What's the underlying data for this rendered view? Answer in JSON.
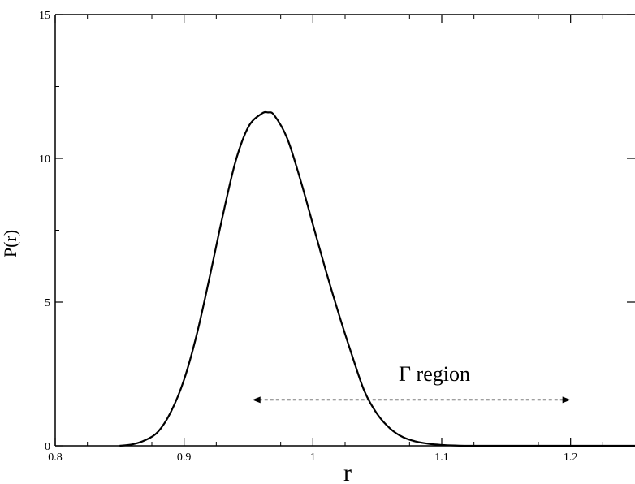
{
  "chart_data": {
    "type": "line",
    "xlabel": "r",
    "ylabel": "P(r)",
    "xlim": [
      0.8,
      1.25
    ],
    "ylim": [
      0,
      15
    ],
    "x_ticks": [
      0.8,
      0.9,
      1.0,
      1.1,
      1.2
    ],
    "x_tick_labels": [
      "0.8",
      "0.9",
      "1",
      "1.1",
      "1.2"
    ],
    "y_ticks": [
      0,
      5,
      10,
      15
    ],
    "y_tick_labels": [
      "0",
      "5",
      "10",
      "15"
    ],
    "grid": false,
    "series": [
      {
        "x": [
          0.85,
          0.86,
          0.87,
          0.88,
          0.89,
          0.9,
          0.91,
          0.92,
          0.93,
          0.94,
          0.95,
          0.96,
          0.965,
          0.97,
          0.98,
          0.99,
          1.0,
          1.01,
          1.02,
          1.03,
          1.04,
          1.05,
          1.06,
          1.07,
          1.08,
          1.09,
          1.1,
          1.11,
          1.12,
          1.15,
          1.2,
          1.25
        ],
        "y": [
          0.0,
          0.05,
          0.2,
          0.5,
          1.2,
          2.3,
          3.9,
          5.9,
          8.0,
          9.9,
          11.1,
          11.55,
          11.6,
          11.5,
          10.7,
          9.3,
          7.7,
          6.1,
          4.6,
          3.2,
          1.9,
          1.1,
          0.6,
          0.3,
          0.15,
          0.07,
          0.03,
          0.01,
          0.0,
          0.0,
          0.0,
          0.0
        ]
      }
    ],
    "annotations": [
      {
        "text": "Γ region",
        "x": 1.045,
        "y": 3.0
      }
    ],
    "arrow": {
      "x_start": 0.953,
      "x_end": 1.2,
      "y": 1.6,
      "style": "dashed",
      "heads": "both"
    }
  }
}
